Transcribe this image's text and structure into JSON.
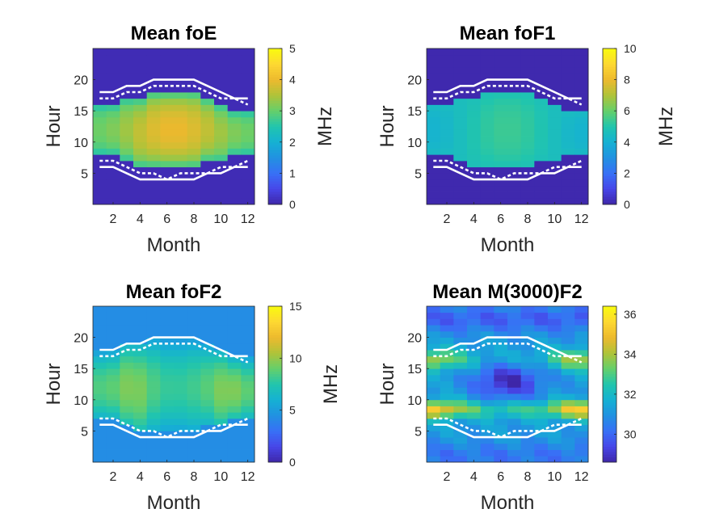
{
  "chart_data": [
    {
      "type": "heatmap",
      "title": "Mean foE",
      "xlabel": "Month",
      "ylabel": "Hour",
      "colorbar_label": "MHz",
      "xlim": [
        0.5,
        12.5
      ],
      "ylim": [
        0,
        25
      ],
      "xticks": [
        2,
        4,
        6,
        8,
        10,
        12
      ],
      "yticks": [
        5,
        10,
        15,
        20
      ],
      "clim": [
        0,
        5
      ],
      "cticks": [
        0,
        1,
        2,
        3,
        4,
        5
      ],
      "peak": 4.0,
      "floor": 0.1,
      "edge": 2.2
    },
    {
      "type": "heatmap",
      "title": "Mean foF1",
      "xlabel": "Month",
      "ylabel": "Hour",
      "colorbar_label": "MHz",
      "xlim": [
        0.5,
        12.5
      ],
      "ylim": [
        0,
        25
      ],
      "xticks": [
        2,
        4,
        6,
        8,
        10,
        12
      ],
      "yticks": [
        5,
        10,
        15,
        20
      ],
      "clim": [
        0,
        10
      ],
      "cticks": [
        0,
        2,
        4,
        6,
        8,
        10
      ],
      "peak": 5.4,
      "floor": 0.1,
      "edge": 4.6
    },
    {
      "type": "heatmap",
      "title": "Mean foF2",
      "xlabel": "Month",
      "ylabel": "Hour",
      "colorbar_label": "MHz",
      "xlim": [
        0.5,
        12.5
      ],
      "ylim": [
        0,
        25
      ],
      "xticks": [
        2,
        4,
        6,
        8,
        10,
        12
      ],
      "yticks": [
        5,
        10,
        15,
        20
      ],
      "clim": [
        0,
        15
      ],
      "cticks": [
        0,
        5,
        10,
        15
      ],
      "day": 8.5,
      "night": 4.3
    },
    {
      "type": "heatmap",
      "title": "Mean M(3000)F2",
      "xlabel": "Month",
      "ylabel": "Hour",
      "colorbar_label": "",
      "xlim": [
        0.5,
        12.5
      ],
      "ylim": [
        0,
        25
      ],
      "xticks": [
        2,
        4,
        6,
        8,
        10,
        12
      ],
      "yticks": [
        5,
        10,
        15,
        20
      ],
      "clim": [
        28.6,
        36.4
      ],
      "cticks": [
        30,
        32,
        34,
        36
      ]
    }
  ],
  "lines": {
    "months": [
      1,
      2,
      3,
      4,
      5,
      6,
      7,
      8,
      9,
      10,
      11,
      12
    ],
    "sunset_solid": [
      18,
      18,
      19,
      19,
      20,
      20,
      20,
      20,
      19,
      18,
      17,
      17
    ],
    "sunset_dashed": [
      17,
      17,
      18,
      18,
      19,
      19,
      19,
      19,
      18,
      17,
      17,
      16
    ],
    "sunrise_solid": [
      6,
      6,
      5,
      4,
      4,
      4,
      4,
      4,
      5,
      5,
      6,
      6
    ],
    "sunrise_dashed": [
      7,
      7,
      6,
      5,
      5,
      4,
      5,
      5,
      5,
      6,
      6,
      7
    ]
  }
}
